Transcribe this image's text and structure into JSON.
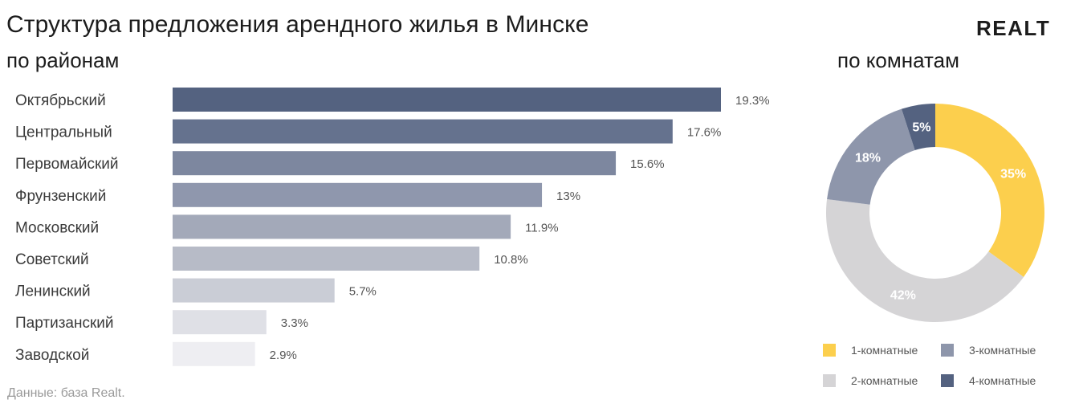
{
  "title": "Структура предложения арендного жилья в Минске",
  "logo": "REALT",
  "source": "Данные: база Realt.",
  "chart_data": [
    {
      "type": "bar",
      "orientation": "horizontal",
      "title": "по районам",
      "categories": [
        "Октябрьский",
        "Центральный",
        "Первомайский",
        "Фрунзенский",
        "Московский",
        "Советский",
        "Ленинский",
        "Партизанский",
        "Заводской"
      ],
      "values": [
        19.3,
        17.6,
        15.6,
        13,
        11.9,
        10.8,
        5.7,
        3.3,
        2.9
      ],
      "value_labels": [
        "19.3%",
        "17.6%",
        "15.6%",
        "13%",
        "11.9%",
        "10.8%",
        "5.7%",
        "3.3%",
        "2.9%"
      ],
      "colors": [
        "#546280",
        "#65728e",
        "#7d879f",
        "#8f97ad",
        "#a3a9b9",
        "#b7bbc7",
        "#cacdd6",
        "#dfe0e6",
        "#eeeef2"
      ],
      "grid": false
    },
    {
      "type": "pie",
      "style": "donut",
      "title": "по комнатам",
      "categories": [
        "1-комнатные",
        "2-комнатные",
        "3-комнатные",
        "4-комнатные"
      ],
      "values": [
        35,
        42,
        18,
        5
      ],
      "value_labels": [
        "35%",
        "42%",
        "18%",
        "5%"
      ],
      "colors": [
        "#fccf4d",
        "#d5d4d6",
        "#8e96ab",
        "#546280"
      ],
      "legend_order": [
        "1-комнатные",
        "3-комнатные",
        "2-комнатные",
        "4-комнатные"
      ],
      "legend_position": "bottom"
    }
  ]
}
